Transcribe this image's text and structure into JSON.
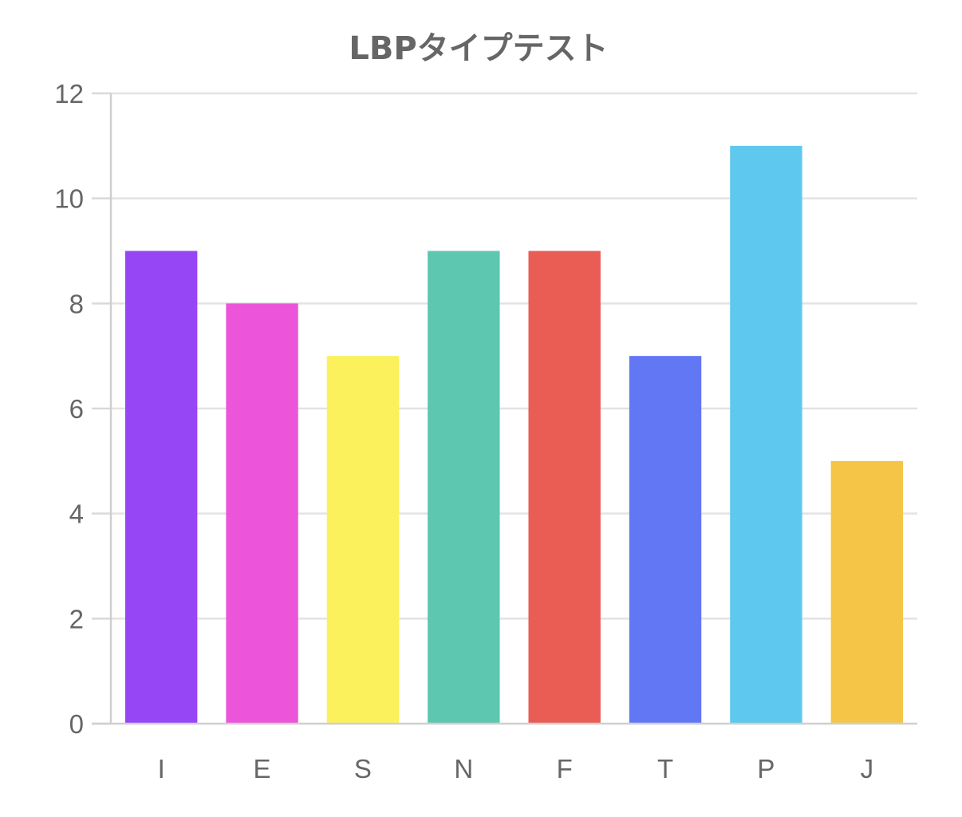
{
  "chart_data": {
    "type": "bar",
    "title": "LBPタイプテスト",
    "categories": [
      "I",
      "E",
      "S",
      "N",
      "F",
      "T",
      "P",
      "J"
    ],
    "values": [
      9,
      8,
      7,
      9,
      9,
      7,
      11,
      5
    ],
    "colors": [
      "#9646f5",
      "#ec55d9",
      "#fbf15c",
      "#5dc7b0",
      "#ea5d54",
      "#6277f4",
      "#5ec8ee",
      "#f4c547"
    ],
    "yticks": [
      0,
      2,
      4,
      6,
      8,
      10,
      12
    ],
    "ylim": [
      0,
      12
    ],
    "xlabel": "",
    "ylabel": "",
    "grid": true,
    "legend": "none"
  }
}
